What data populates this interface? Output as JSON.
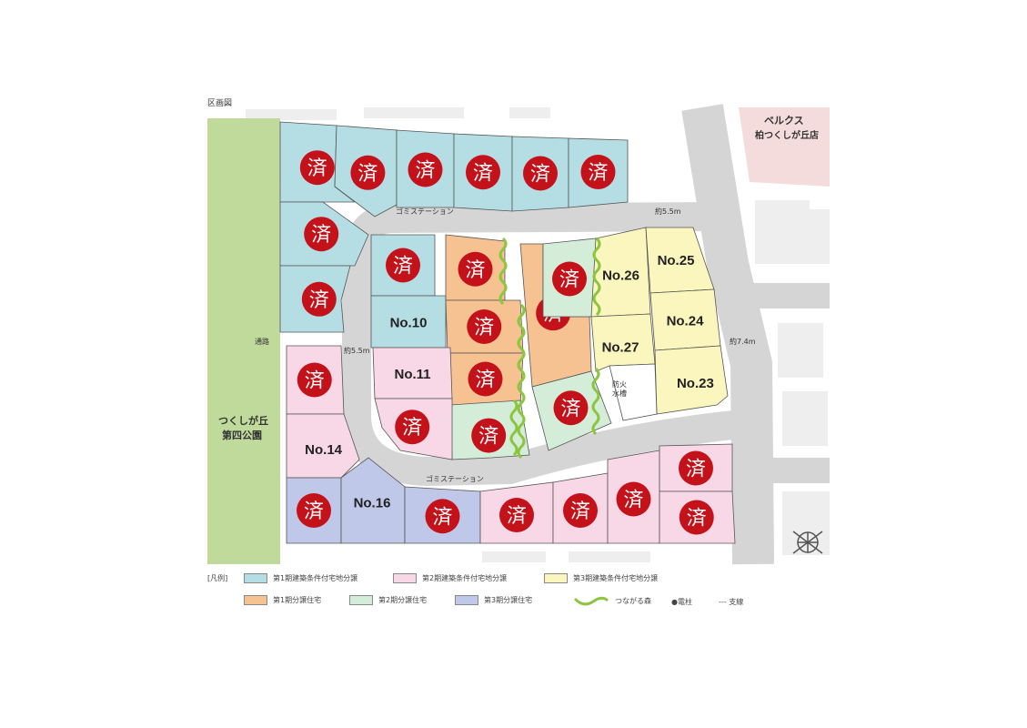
{
  "title": "区画図",
  "store": {
    "line1": "ベルクス",
    "line2": "柏つくしが丘店"
  },
  "park": {
    "line1": "つくしが丘",
    "line2": "第四公園"
  },
  "annotations": {
    "garbage_station_top": "ゴミステーション",
    "garbage_station_bottom": "ゴミステーション",
    "width_top": "約5.5m",
    "width_left": "約5.5m",
    "width_main": "約7.4m",
    "passage": "通路",
    "fire_tank": "防火水槽"
  },
  "colors": {
    "phase1_lot": "#b5dee4",
    "phase2_lot": "#f8d8e7",
    "phase3_lot": "#fbf6bd",
    "phase1_house": "#f7c292",
    "phase2_house": "#d4edd8",
    "phase3_house": "#bfc8e8",
    "sold_badge": "#c4121b",
    "forest": "#8cc63f",
    "road": "#d5d5d5",
    "park": "#c0da9c"
  },
  "sold_mark": "済",
  "plots": [
    {
      "cat": "phase1_lot",
      "sold": true
    },
    {
      "cat": "phase1_lot",
      "sold": true
    },
    {
      "cat": "phase1_lot",
      "sold": true
    },
    {
      "cat": "phase1_lot",
      "sold": true
    },
    {
      "cat": "phase1_lot",
      "sold": true
    },
    {
      "cat": "phase1_lot",
      "sold": true
    },
    {
      "cat": "phase1_lot",
      "sold": true
    },
    {
      "cat": "phase1_lot",
      "sold": true
    },
    {
      "cat": "phase1_lot",
      "sold": true
    },
    {
      "cat": "phase1_lot",
      "sold": false,
      "label": "No.10"
    },
    {
      "cat": "phase1_house",
      "sold": true
    },
    {
      "cat": "phase1_house",
      "sold": true
    },
    {
      "cat": "phase1_house",
      "sold": true
    },
    {
      "cat": "phase1_house",
      "sold": true
    },
    {
      "cat": "phase2_house",
      "sold": true
    },
    {
      "cat": "phase2_house",
      "sold": true
    },
    {
      "cat": "phase2_house",
      "sold": true
    },
    {
      "cat": "phase3_lot",
      "sold": false,
      "label": "No.26"
    },
    {
      "cat": "phase3_lot",
      "sold": false,
      "label": "No.25"
    },
    {
      "cat": "phase3_lot",
      "sold": false,
      "label": "No.24"
    },
    {
      "cat": "phase3_lot",
      "sold": false,
      "label": "No.27"
    },
    {
      "cat": "phase3_lot",
      "sold": false,
      "label": "No.23"
    },
    {
      "cat": "fire_tank",
      "sold": false
    },
    {
      "cat": "phase2_lot",
      "sold": true
    },
    {
      "cat": "phase2_lot",
      "sold": false,
      "label": "No.14"
    },
    {
      "cat": "phase2_lot",
      "sold": false,
      "label": "No.11"
    },
    {
      "cat": "phase2_lot",
      "sold": true
    },
    {
      "cat": "phase3_house",
      "sold": true
    },
    {
      "cat": "phase3_house",
      "sold": false,
      "label": "No.16"
    },
    {
      "cat": "phase3_house",
      "sold": true
    },
    {
      "cat": "phase2_lot",
      "sold": true
    },
    {
      "cat": "phase2_lot",
      "sold": true
    },
    {
      "cat": "phase2_lot",
      "sold": true
    },
    {
      "cat": "phase2_lot",
      "sold": true
    },
    {
      "cat": "phase2_lot",
      "sold": true
    }
  ],
  "legend": {
    "heading": "[凡例]",
    "items": [
      {
        "key": "phase1_lot",
        "label": "第1期建築条件付宅地分譲"
      },
      {
        "key": "phase2_lot",
        "label": "第2期建築条件付宅地分譲"
      },
      {
        "key": "phase3_lot",
        "label": "第3期建築条件付宅地分譲"
      },
      {
        "key": "phase1_house",
        "label": "第1期分譲住宅"
      },
      {
        "key": "phase2_house",
        "label": "第2期分譲住宅"
      },
      {
        "key": "phase3_house",
        "label": "第3期分譲住宅"
      }
    ],
    "forest": "つながる森",
    "pole": "●電柱",
    "guy": "--- 支線"
  }
}
